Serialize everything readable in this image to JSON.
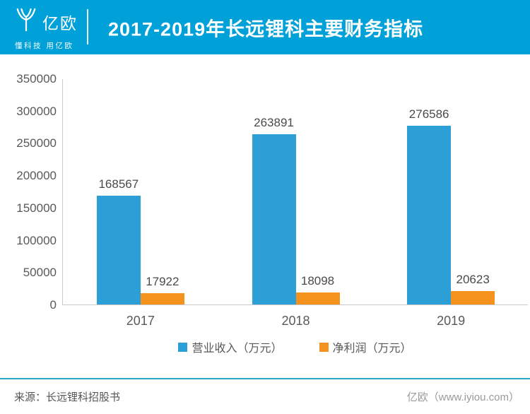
{
  "header": {
    "logo_text": "亿欧",
    "logo_tagline": "懂科技 用亿欧",
    "title": "2017-2019年长远锂科主要财务指标"
  },
  "chart_data": {
    "type": "bar",
    "title": "2017-2019年长远锂科主要财务指标",
    "categories": [
      "2017",
      "2018",
      "2019"
    ],
    "series": [
      {
        "name": "营业收入（万元）",
        "color": "#2B9FD6",
        "values": [
          168567,
          263891,
          276586
        ]
      },
      {
        "name": "净利润（万元）",
        "color": "#F5921E",
        "values": [
          17922,
          18098,
          20623
        ]
      }
    ],
    "ylim": [
      0,
      350000
    ],
    "ytick_step": 50000,
    "ytick_labels": [
      "350000",
      "300000",
      "250000",
      "200000",
      "150000",
      "100000",
      "50000",
      "0"
    ],
    "grid": false,
    "value_labels": true,
    "legend_position": "bottom"
  },
  "footer": {
    "source": "来源：长远锂科招股书",
    "brand": "亿欧（www.iyiou.com）"
  },
  "colors": {
    "header_background": "#00A0D8",
    "series_blue": "#2B9FD6",
    "series_orange": "#F5921E",
    "footer_divider": "#2BA7CE",
    "axis_line": "#C9C9C9",
    "tick_text": "#595959",
    "value_text": "#4A4A4A"
  }
}
